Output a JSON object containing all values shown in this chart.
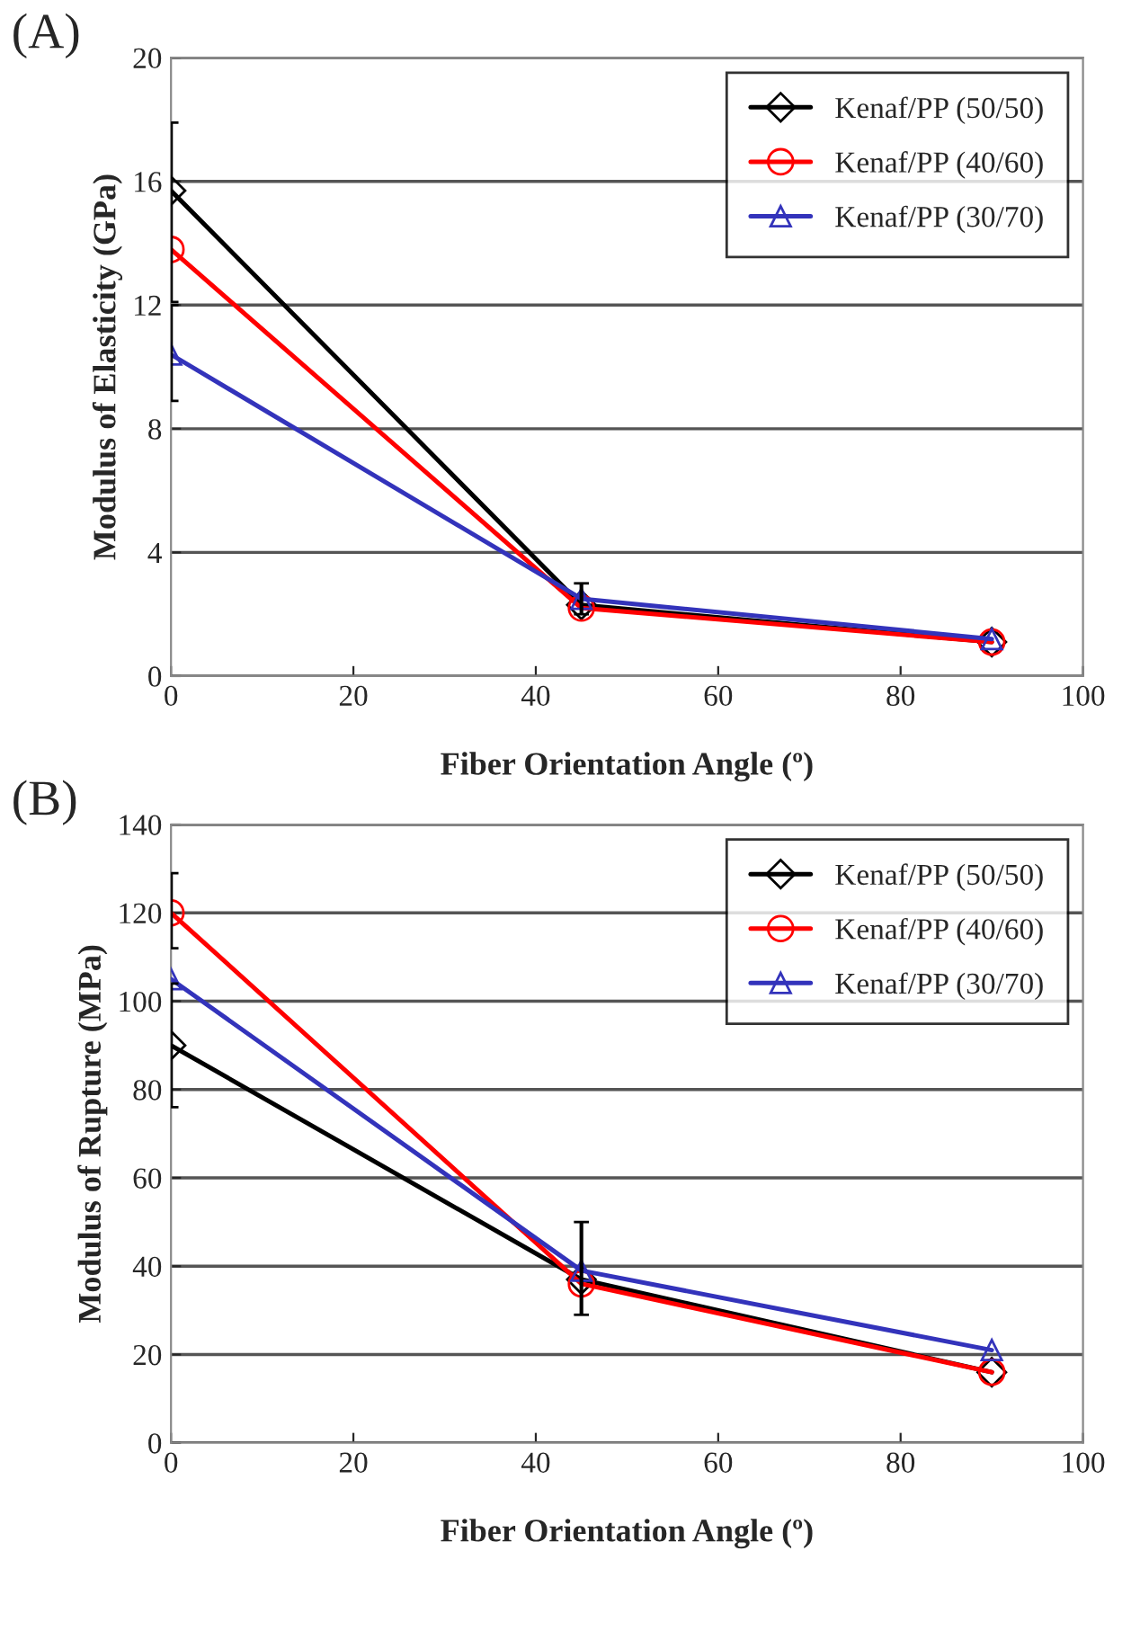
{
  "chart_data": [
    {
      "type": "line",
      "title": "(A)",
      "xlabel": "Fiber Orientation Angle (º)",
      "ylabel": "Modulus of Elasticity (GPa)",
      "x": [
        0,
        45,
        90
      ],
      "xlim": [
        0,
        100
      ],
      "xticks": [
        0,
        20,
        40,
        60,
        80,
        100
      ],
      "ylim": [
        0,
        20
      ],
      "yticks": [
        0,
        4,
        8,
        12,
        16,
        20
      ],
      "grid": "y",
      "legend": "top right",
      "series": [
        {
          "name": "Kenaf/PP (50/50)",
          "color": "#000000",
          "marker": "diamond",
          "values": [
            15.7,
            2.3,
            1.1
          ],
          "errors": [
            [
              12.1,
              17.9
            ],
            [
              2.0,
              3.0
            ],
            null
          ]
        },
        {
          "name": "Kenaf/PP (40/60)",
          "color": "#ff0000",
          "marker": "circle",
          "values": [
            13.8,
            2.2,
            1.1
          ]
        },
        {
          "name": "Kenaf/PP (30/70)",
          "color": "#3333bb",
          "marker": "triangle",
          "values": [
            10.4,
            2.5,
            1.2
          ],
          "errors": [
            [
              8.9,
              12.0
            ],
            null,
            null
          ]
        }
      ]
    },
    {
      "type": "line",
      "title": "(B)",
      "xlabel": "Fiber Orientation Angle (º)",
      "ylabel": "Modulus of Rupture (MPa)",
      "x": [
        0,
        45,
        90
      ],
      "xlim": [
        0,
        100
      ],
      "xticks": [
        0,
        20,
        40,
        60,
        80,
        100
      ],
      "ylim": [
        0,
        140
      ],
      "yticks": [
        0,
        20,
        40,
        60,
        80,
        100,
        120,
        140
      ],
      "grid": "y",
      "legend": "top right",
      "series": [
        {
          "name": "Kenaf/PP (50/50)",
          "color": "#000000",
          "marker": "diamond",
          "values": [
            90,
            37,
            16
          ],
          "errors": [
            [
              76,
              104
            ],
            [
              29,
              50
            ],
            null
          ]
        },
        {
          "name": "Kenaf/PP (40/60)",
          "color": "#ff0000",
          "marker": "circle",
          "values": [
            120,
            36,
            16
          ],
          "errors": [
            [
              112,
              129
            ],
            null,
            null
          ]
        },
        {
          "name": "Kenaf/PP (30/70)",
          "color": "#3333bb",
          "marker": "triangle",
          "values": [
            105,
            39,
            21
          ]
        }
      ]
    }
  ]
}
